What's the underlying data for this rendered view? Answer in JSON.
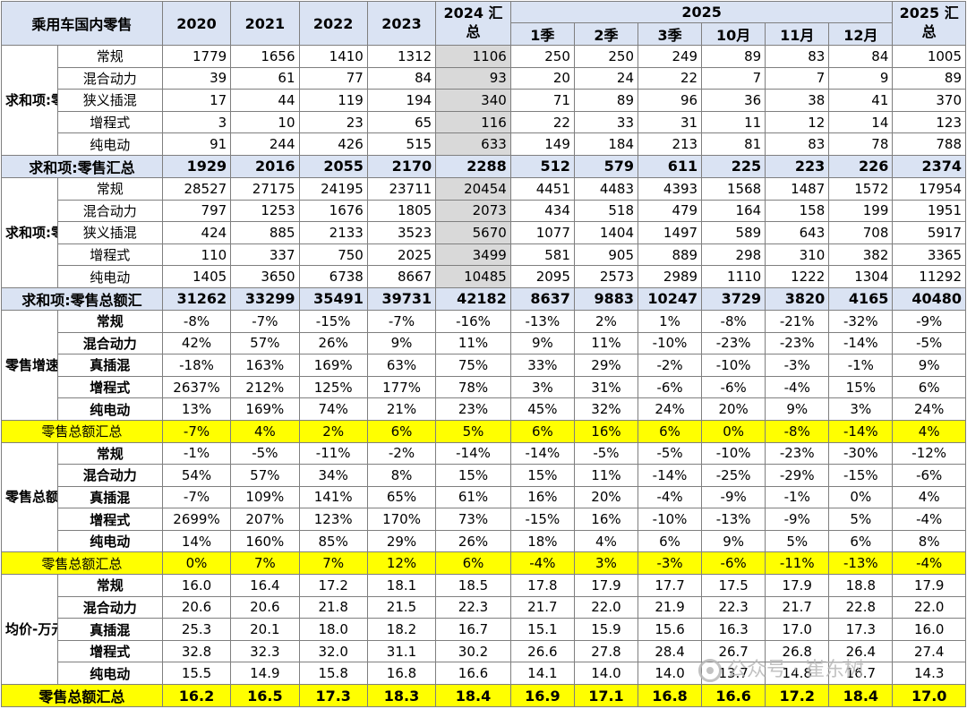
{
  "header": {
    "corner": "乘用车国内零售",
    "years": [
      "2020",
      "2021",
      "2022",
      "2023"
    ],
    "total2024": "2024 汇总",
    "year2025": "2025",
    "periods": [
      "1季",
      "2季",
      "3季",
      "10月",
      "11月",
      "12月"
    ],
    "total2025": "2025 汇总"
  },
  "sections": [
    {
      "title": "求和项:零售",
      "rows": [
        {
          "label": "常规",
          "values": [
            "1779",
            "1656",
            "1410",
            "1312",
            "1106",
            "250",
            "250",
            "249",
            "89",
            "83",
            "84",
            "1005"
          ]
        },
        {
          "label": "混合动力",
          "values": [
            "39",
            "61",
            "77",
            "84",
            "93",
            "20",
            "24",
            "22",
            "7",
            "7",
            "9",
            "89"
          ]
        },
        {
          "label": "狭义插混",
          "values": [
            "17",
            "44",
            "119",
            "194",
            "340",
            "71",
            "89",
            "96",
            "36",
            "38",
            "41",
            "370"
          ]
        },
        {
          "label": "增程式",
          "values": [
            "3",
            "10",
            "23",
            "65",
            "116",
            "22",
            "33",
            "31",
            "11",
            "12",
            "14",
            "123"
          ]
        },
        {
          "label": "纯电动",
          "values": [
            "91",
            "244",
            "426",
            "515",
            "633",
            "149",
            "184",
            "213",
            "81",
            "83",
            "78",
            "788"
          ]
        }
      ],
      "total": {
        "label": "求和项:零售汇总",
        "values": [
          "1929",
          "2016",
          "2055",
          "2170",
          "2288",
          "512",
          "579",
          "611",
          "225",
          "223",
          "226",
          "2374"
        ]
      }
    },
    {
      "title": "求和项:零售总额",
      "rows": [
        {
          "label": "常规",
          "values": [
            "28527",
            "27175",
            "24195",
            "23711",
            "20454",
            "4451",
            "4483",
            "4393",
            "1568",
            "1487",
            "1572",
            "17954"
          ]
        },
        {
          "label": "混合动力",
          "values": [
            "797",
            "1253",
            "1676",
            "1805",
            "2073",
            "434",
            "518",
            "479",
            "164",
            "158",
            "199",
            "1951"
          ]
        },
        {
          "label": "狭义插混",
          "values": [
            "424",
            "885",
            "2133",
            "3523",
            "5670",
            "1077",
            "1404",
            "1497",
            "589",
            "643",
            "708",
            "5917"
          ]
        },
        {
          "label": "增程式",
          "values": [
            "110",
            "337",
            "750",
            "2025",
            "3499",
            "581",
            "905",
            "889",
            "298",
            "310",
            "382",
            "3365"
          ]
        },
        {
          "label": "纯电动",
          "values": [
            "1405",
            "3650",
            "6738",
            "8667",
            "10485",
            "2095",
            "2573",
            "2989",
            "1110",
            "1222",
            "1304",
            "11292"
          ]
        }
      ],
      "total": {
        "label": "求和项:零售总额汇",
        "values": [
          "31262",
          "33299",
          "35491",
          "39731",
          "42182",
          "8637",
          "9883",
          "10247",
          "3729",
          "3820",
          "4165",
          "40480"
        ]
      }
    },
    {
      "title": "零售增速",
      "rows": [
        {
          "label": "常规",
          "values": [
            "-8%",
            "-7%",
            "-15%",
            "-7%",
            "-16%",
            "-13%",
            "2%",
            "1%",
            "-8%",
            "-21%",
            "-32%",
            "-9%"
          ]
        },
        {
          "label": "混合动力",
          "values": [
            "42%",
            "57%",
            "26%",
            "9%",
            "11%",
            "9%",
            "11%",
            "-10%",
            "-23%",
            "-23%",
            "-14%",
            "-5%"
          ]
        },
        {
          "label": "真插混",
          "values": [
            "-18%",
            "163%",
            "169%",
            "63%",
            "75%",
            "33%",
            "29%",
            "-2%",
            "-10%",
            "-3%",
            "-1%",
            "9%"
          ]
        },
        {
          "label": "增程式",
          "values": [
            "2637%",
            "212%",
            "125%",
            "177%",
            "78%",
            "3%",
            "31%",
            "-6%",
            "-6%",
            "-4%",
            "15%",
            "6%"
          ]
        },
        {
          "label": "纯电动",
          "values": [
            "13%",
            "169%",
            "74%",
            "21%",
            "23%",
            "45%",
            "32%",
            "24%",
            "20%",
            "9%",
            "3%",
            "24%"
          ]
        }
      ],
      "total": {
        "label": "零售总额汇总",
        "values": [
          "-7%",
          "4%",
          "2%",
          "6%",
          "5%",
          "6%",
          "16%",
          "6%",
          "0%",
          "-8%",
          "-14%",
          "4%"
        ]
      }
    },
    {
      "title": "零售总额-增速",
      "rows": [
        {
          "label": "常规",
          "values": [
            "-1%",
            "-5%",
            "-11%",
            "-2%",
            "-14%",
            "-14%",
            "-5%",
            "-5%",
            "-10%",
            "-23%",
            "-30%",
            "-12%"
          ]
        },
        {
          "label": "混合动力",
          "values": [
            "54%",
            "57%",
            "34%",
            "8%",
            "15%",
            "15%",
            "11%",
            "-14%",
            "-25%",
            "-29%",
            "-15%",
            "-6%"
          ]
        },
        {
          "label": "真插混",
          "values": [
            "-7%",
            "109%",
            "141%",
            "65%",
            "61%",
            "16%",
            "20%",
            "-4%",
            "-9%",
            "-1%",
            "0%",
            "4%"
          ]
        },
        {
          "label": "增程式",
          "values": [
            "2699%",
            "207%",
            "123%",
            "170%",
            "73%",
            "-15%",
            "16%",
            "-10%",
            "-13%",
            "-9%",
            "5%",
            "-4%"
          ]
        },
        {
          "label": "纯电动",
          "values": [
            "14%",
            "160%",
            "85%",
            "29%",
            "26%",
            "18%",
            "4%",
            "6%",
            "9%",
            "5%",
            "6%",
            "8%"
          ]
        }
      ],
      "total": {
        "label": "零售总额汇总",
        "values": [
          "0%",
          "7%",
          "7%",
          "12%",
          "6%",
          "-4%",
          "3%",
          "-3%",
          "-6%",
          "-11%",
          "-13%",
          "-4%"
        ]
      }
    },
    {
      "title": "均价-万元",
      "rows": [
        {
          "label": "常规",
          "values": [
            "16.0",
            "16.4",
            "17.2",
            "18.1",
            "18.5",
            "17.8",
            "17.9",
            "17.7",
            "17.5",
            "17.9",
            "18.8",
            "17.9"
          ]
        },
        {
          "label": "混合动力",
          "values": [
            "20.6",
            "20.6",
            "21.8",
            "21.5",
            "22.3",
            "21.7",
            "22.0",
            "21.9",
            "22.3",
            "21.7",
            "22.8",
            "22.0"
          ]
        },
        {
          "label": "真插混",
          "values": [
            "25.3",
            "20.1",
            "18.0",
            "18.2",
            "16.7",
            "15.1",
            "15.9",
            "15.6",
            "16.3",
            "17.0",
            "17.3",
            "16.0"
          ]
        },
        {
          "label": "增程式",
          "values": [
            "32.8",
            "32.3",
            "32.0",
            "31.1",
            "30.2",
            "26.6",
            "27.8",
            "28.4",
            "26.7",
            "26.8",
            "26.4",
            "27.4"
          ]
        },
        {
          "label": "纯电动",
          "values": [
            "15.5",
            "14.9",
            "15.8",
            "16.8",
            "16.6",
            "14.1",
            "14.0",
            "14.0",
            "13.7",
            "14.8",
            "16.7",
            "14.3"
          ]
        }
      ],
      "total": {
        "label": "零售总额汇总",
        "values": [
          "16.2",
          "16.5",
          "17.3",
          "18.3",
          "18.4",
          "16.9",
          "17.1",
          "16.8",
          "16.6",
          "17.2",
          "18.4",
          "17.0"
        ]
      }
    }
  ],
  "watermark": {
    "text": "公众号 · 崔东树",
    "icon": "wechat-icon"
  }
}
